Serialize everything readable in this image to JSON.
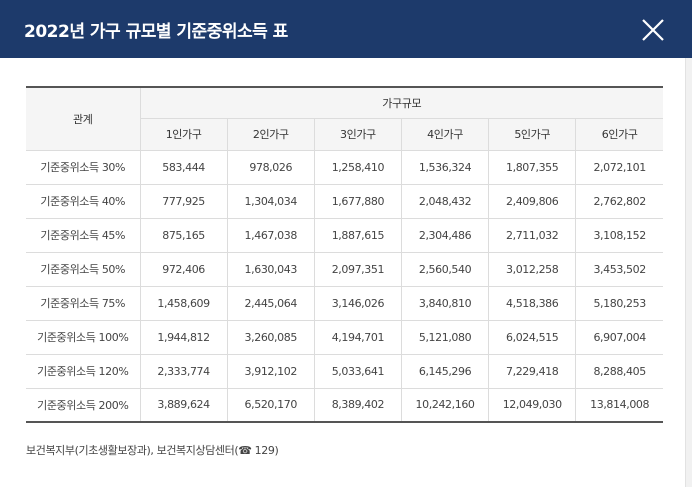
{
  "dialog": {
    "title": "2022년 가구 규모별 기준중위소득 표",
    "close_icon": "close-icon"
  },
  "table": {
    "header_relation": "관계",
    "header_group": "가구규모",
    "columns": [
      "1인가구",
      "2인가구",
      "3인가구",
      "4인가구",
      "5인가구",
      "6인가구"
    ],
    "rows": [
      {
        "label": "기준중위소득 30%",
        "values": [
          "583,444",
          "978,026",
          "1,258,410",
          "1,536,324",
          "1,807,355",
          "2,072,101"
        ]
      },
      {
        "label": "기준중위소득 40%",
        "values": [
          "777,925",
          "1,304,034",
          "1,677,880",
          "2,048,432",
          "2,409,806",
          "2,762,802"
        ]
      },
      {
        "label": "기준중위소득 45%",
        "values": [
          "875,165",
          "1,467,038",
          "1,887,615",
          "2,304,486",
          "2,711,032",
          "3,108,152"
        ]
      },
      {
        "label": "기준중위소득 50%",
        "values": [
          "972,406",
          "1,630,043",
          "2,097,351",
          "2,560,540",
          "3,012,258",
          "3,453,502"
        ]
      },
      {
        "label": "기준중위소득 75%",
        "values": [
          "1,458,609",
          "2,445,064",
          "3,146,026",
          "3,840,810",
          "4,518,386",
          "5,180,253"
        ]
      },
      {
        "label": "기준중위소득 100%",
        "values": [
          "1,944,812",
          "3,260,085",
          "4,194,701",
          "5,121,080",
          "6,024,515",
          "6,907,004"
        ]
      },
      {
        "label": "기준중위소득 120%",
        "values": [
          "2,333,774",
          "3,912,102",
          "5,033,641",
          "6,145,296",
          "7,229,418",
          "8,288,405"
        ]
      },
      {
        "label": "기준중위소득 200%",
        "values": [
          "3,889,624",
          "6,520,170",
          "8,389,402",
          "10,242,160",
          "12,049,030",
          "13,814,008"
        ]
      }
    ]
  },
  "footnote": "보건복지부(기초생활보장과), 보건복지상담센터(☎ 129)",
  "colors": {
    "header_bg": "#1d3a6b",
    "table_head_bg": "#f5f5f5"
  }
}
